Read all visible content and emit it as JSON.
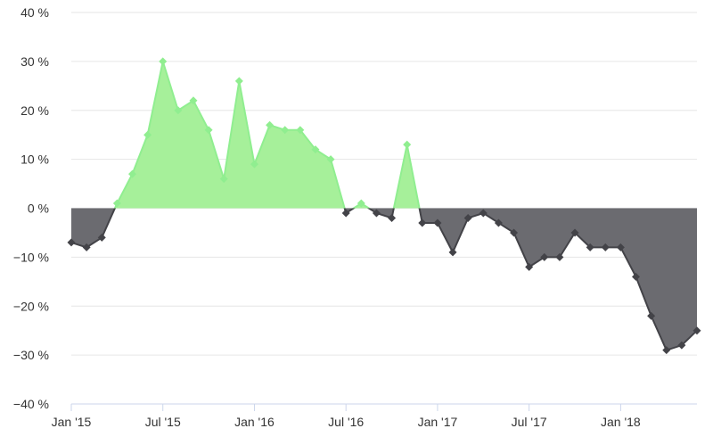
{
  "chart_data": {
    "type": "area",
    "xlabel": "",
    "ylabel": "",
    "ylim": [
      -40,
      40
    ],
    "y_ticks": [
      -40,
      -30,
      -20,
      -10,
      0,
      10,
      20,
      30,
      40
    ],
    "y_tick_labels": [
      "−40 %",
      "−30 %",
      "−20 %",
      "−10 %",
      "0 %",
      "10 %",
      "20 %",
      "30 %",
      "40 %"
    ],
    "x_ticks": [
      "2015-01",
      "2015-07",
      "2016-01",
      "2016-07",
      "2017-01",
      "2017-07",
      "2018-01"
    ],
    "x_tick_labels": [
      "Jan '15",
      "Jul '15",
      "Jan '16",
      "Jul '16",
      "Jan '17",
      "Jul '17",
      "Jan '18"
    ],
    "grid": true,
    "colors": {
      "positive": "#90ee90",
      "positive_fill": "#a6f09a",
      "negative": "#434348",
      "negative_fill": "#6b6b70",
      "grid": "#e6e6e6"
    },
    "series": [
      {
        "x": [
          "2015-01",
          "2015-02",
          "2015-03",
          "2015-04",
          "2015-05",
          "2015-06",
          "2015-07",
          "2015-08",
          "2015-09",
          "2015-10",
          "2015-11",
          "2015-12",
          "2016-01",
          "2016-02",
          "2016-03",
          "2016-04",
          "2016-05",
          "2016-06",
          "2016-07",
          "2016-08",
          "2016-09",
          "2016-10",
          "2016-11",
          "2016-12",
          "2017-01",
          "2017-02",
          "2017-03",
          "2017-04",
          "2017-05",
          "2017-06",
          "2017-07",
          "2017-08",
          "2017-09",
          "2017-10",
          "2017-11",
          "2017-12",
          "2018-01",
          "2018-02",
          "2018-03",
          "2018-04",
          "2018-05",
          "2018-06"
        ],
        "values": [
          -7,
          -8,
          -6,
          1,
          7,
          15,
          30,
          20,
          22,
          16,
          6,
          26,
          9,
          17,
          16,
          16,
          12,
          10,
          -1,
          1,
          -1,
          -2,
          13,
          -3,
          -3,
          -9,
          -2,
          -1,
          -3,
          -5,
          -12,
          -10,
          -10,
          -5,
          -8,
          -8,
          -8,
          -14,
          -22,
          -29,
          -28,
          -25
        ]
      }
    ]
  }
}
